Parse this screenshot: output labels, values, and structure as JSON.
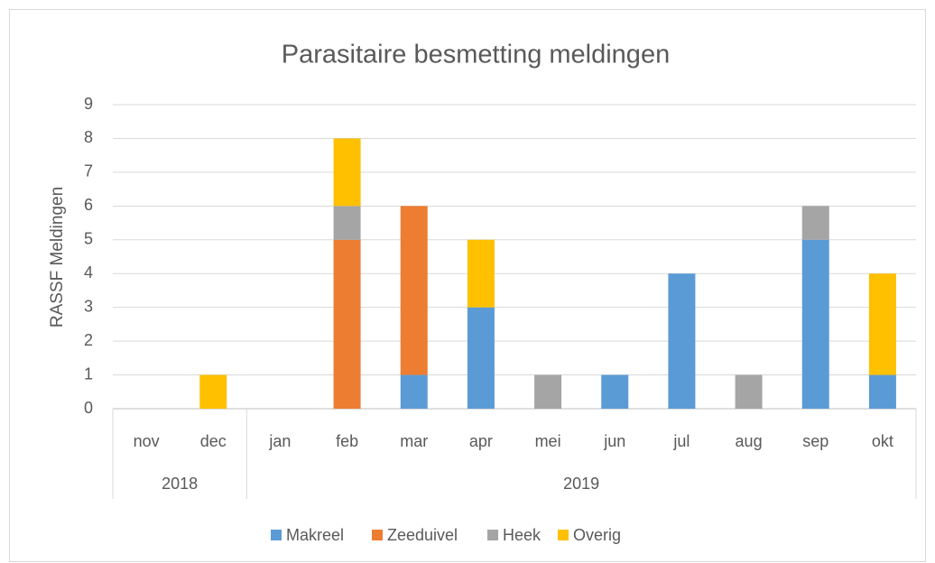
{
  "chart_data": {
    "type": "stacked_bar",
    "title": "Parasitaire besmetting meldingen",
    "y_label": "RASSF Meldingen",
    "categories": [
      "nov",
      "dec",
      "jan",
      "feb",
      "mar",
      "apr",
      "mei",
      "jun",
      "jul",
      "aug",
      "sep",
      "okt"
    ],
    "groups": [
      {
        "label": "2018",
        "count": 2
      },
      {
        "label": "2019",
        "count": 10
      }
    ],
    "series": [
      {
        "name": "Makreel",
        "color": "#5b9bd5",
        "values": [
          0,
          0,
          0,
          0,
          1,
          3,
          0,
          1,
          4,
          0,
          5,
          1
        ]
      },
      {
        "name": "Zeeduivel",
        "color": "#ed7d31",
        "values": [
          0,
          0,
          0,
          5,
          5,
          0,
          0,
          0,
          0,
          0,
          0,
          0
        ]
      },
      {
        "name": "Heek",
        "color": "#a5a5a5",
        "values": [
          0,
          0,
          0,
          1,
          0,
          0,
          1,
          0,
          0,
          1,
          1,
          0
        ]
      },
      {
        "name": "Overig",
        "color": "#ffc000",
        "values": [
          0,
          1,
          0,
          2,
          0,
          2,
          0,
          0,
          0,
          0,
          0,
          3
        ]
      }
    ],
    "ylim": [
      0,
      9
    ],
    "yticks": [
      0,
      1,
      2,
      3,
      4,
      5,
      6,
      7,
      8,
      9
    ],
    "grid": true,
    "legend": "bottom"
  }
}
